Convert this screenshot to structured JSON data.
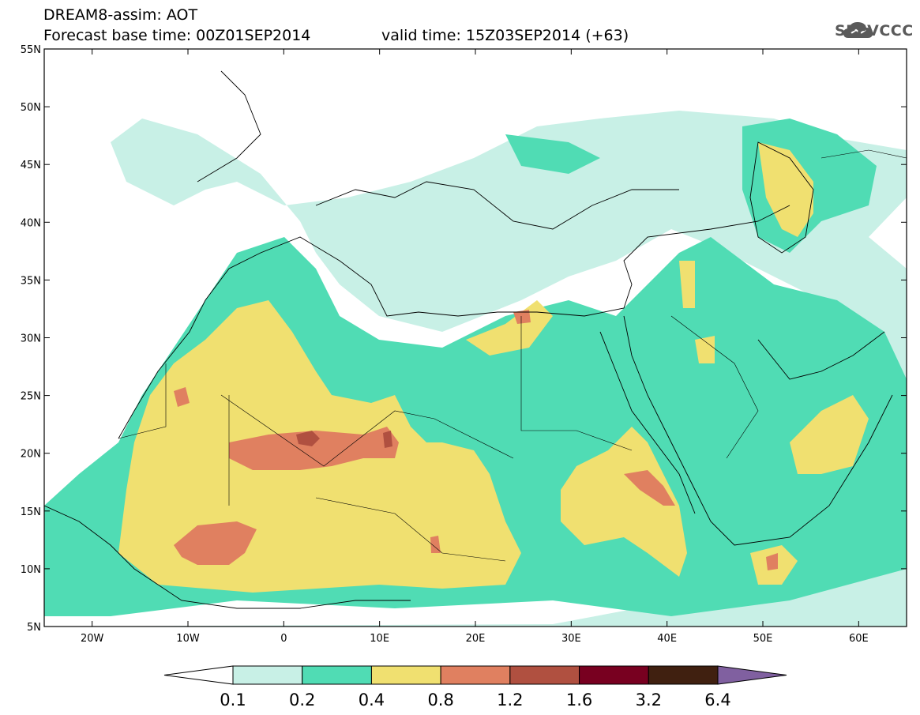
{
  "header": {
    "line1": "DREAM8-assim: AOT",
    "line2_left": "Forecast base time: 00Z01SEP2014",
    "line2_right": "valid time: 15Z03SEP2014 (+63)"
  },
  "logo": {
    "text": "SEEVCCC",
    "icon": "cloud-logo-icon"
  },
  "map": {
    "lon_range": [
      -25,
      65
    ],
    "lat_range": [
      5,
      55
    ],
    "lat_ticks": [
      "55N",
      "50N",
      "45N",
      "40N",
      "35N",
      "30N",
      "25N",
      "20N",
      "15N",
      "10N",
      "5N"
    ],
    "lon_ticks": [
      "20W",
      "10W",
      "0",
      "10E",
      "20E",
      "30E",
      "40E",
      "50E",
      "60E"
    ]
  },
  "colorbar": {
    "labels": [
      "0.1",
      "0.2",
      "0.4",
      "0.8",
      "1.2",
      "1.6",
      "3.2",
      "6.4"
    ],
    "colors": [
      "#ffffff",
      "#c8f0e6",
      "#50dcb4",
      "#f0e070",
      "#e08060",
      "#b05040",
      "#780020",
      "#402010",
      "#8060a0"
    ]
  }
}
